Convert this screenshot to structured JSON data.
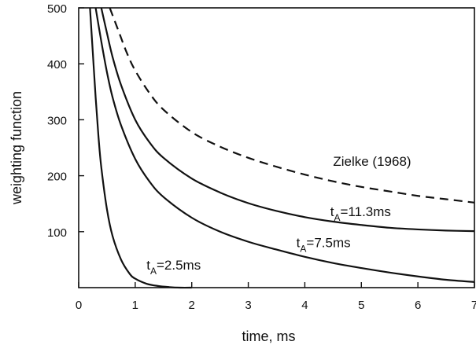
{
  "chart_data": {
    "type": "line",
    "xlabel": "time,  ms",
    "ylabel": "weighting  function",
    "xlim": [
      0,
      7
    ],
    "ylim": [
      0,
      500
    ],
    "x_ticks": [
      "0",
      "1",
      "2",
      "3",
      "4",
      "5",
      "6",
      "7"
    ],
    "y_ticks": [
      "100",
      "200",
      "300",
      "400",
      "500"
    ],
    "grid": false,
    "series": [
      {
        "name": "Zielke (1968)",
        "style": "dashed",
        "x": [
          0.55,
          0.7,
          0.85,
          1.0,
          1.25,
          1.5,
          2.0,
          2.5,
          3.0,
          3.5,
          4.0,
          4.5,
          5.0,
          5.5,
          6.0,
          6.5,
          7.0
        ],
        "y": [
          500,
          460,
          420,
          388,
          348,
          318,
          278,
          252,
          232,
          216,
          202,
          190,
          180,
          172,
          164,
          158,
          152
        ]
      },
      {
        "name": "t_A=11.3ms",
        "style": "solid",
        "x": [
          0.4,
          0.5,
          0.6,
          0.75,
          1.0,
          1.25,
          1.5,
          2.0,
          2.5,
          3.0,
          3.5,
          4.0,
          4.5,
          5.0,
          5.5,
          6.0,
          6.5,
          7.0
        ],
        "y": [
          500,
          455,
          412,
          362,
          300,
          260,
          232,
          195,
          170,
          151,
          137,
          126,
          118,
          112,
          107,
          104,
          102,
          101
        ]
      },
      {
        "name": "t_A=7.5ms",
        "style": "solid",
        "x": [
          0.3,
          0.4,
          0.5,
          0.6,
          0.75,
          1.0,
          1.25,
          1.5,
          2.0,
          2.5,
          3.0,
          3.5,
          4.0,
          4.5,
          5.0,
          5.5,
          6.0,
          6.5,
          7.0
        ],
        "y": [
          500,
          440,
          385,
          340,
          290,
          230,
          190,
          162,
          125,
          100,
          82,
          68,
          55,
          44,
          35,
          27,
          20,
          14,
          10
        ]
      },
      {
        "name": "t_A=2.5ms",
        "style": "solid",
        "x": [
          0.2,
          0.25,
          0.3,
          0.35,
          0.4,
          0.5,
          0.6,
          0.75,
          0.9,
          1.0,
          1.2,
          1.4,
          1.6,
          1.8,
          2.0
        ],
        "y": [
          500,
          420,
          340,
          270,
          215,
          140,
          92,
          50,
          25,
          16,
          7,
          3,
          1,
          0,
          0
        ]
      }
    ],
    "annotations": [
      {
        "text": "Zielke (1968)",
        "x": 4.5,
        "y": 218
      },
      {
        "main": "t",
        "sub": "A",
        "rest": "=11.3ms",
        "x": 4.45,
        "y": 128
      },
      {
        "main": "t",
        "sub": "A",
        "rest": "=7.5ms",
        "x": 3.85,
        "y": 72
      },
      {
        "main": "t",
        "sub": "A",
        "rest": "=2.5ms",
        "x": 1.2,
        "y": 32
      }
    ]
  }
}
